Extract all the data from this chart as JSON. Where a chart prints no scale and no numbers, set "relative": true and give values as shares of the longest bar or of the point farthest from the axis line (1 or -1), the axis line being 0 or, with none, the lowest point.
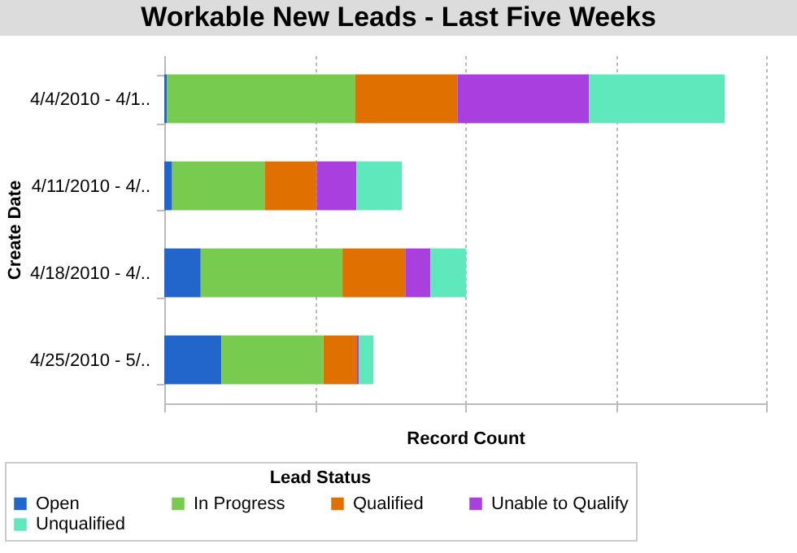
{
  "chart_data": {
    "type": "bar",
    "orientation": "horizontal",
    "stacked": true,
    "relative": true,
    "title": "Workable New Leads - Last Five Weeks",
    "xlabel": "Record Count",
    "ylabel": "Create Date",
    "legend_title": "Lead Status",
    "legend": "bottom",
    "grid": "x",
    "categories": [
      "4/4/2010 - 4/1..",
      "4/11/2010 - 4/..",
      "4/18/2010 - 4/..",
      "4/25/2010 - 5/.."
    ],
    "series": [
      {
        "name": "Open",
        "color": "#2266cc",
        "values": [
          0.005,
          0.014,
          0.065,
          0.102
        ]
      },
      {
        "name": "In Progress",
        "color": "#77cc4f",
        "values": [
          0.336,
          0.165,
          0.253,
          0.182
        ]
      },
      {
        "name": "Qualified",
        "color": "#e07000",
        "values": [
          0.182,
          0.093,
          0.112,
          0.06
        ]
      },
      {
        "name": "Unable to Qualify",
        "color": "#aa3fe0",
        "values": [
          0.235,
          0.071,
          0.045,
          0.003
        ]
      },
      {
        "name": "Unqualified",
        "color": "#5ee8bb",
        "values": [
          0.242,
          0.081,
          0.064,
          0.026
        ]
      }
    ]
  }
}
